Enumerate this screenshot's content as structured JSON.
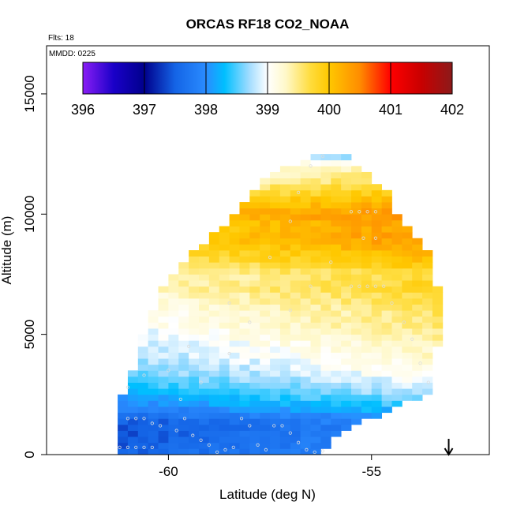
{
  "chart_data": {
    "type": "heatmap",
    "title": "ORCAS RF18 CO2_NOAA",
    "subtitle_flts": "Flts: 18",
    "subtitle_mmdd": "MMDD: 0225",
    "xlabel": "Latitude (deg N)",
    "ylabel": "Altitude (m)",
    "xlim": [
      -63,
      -52.1
    ],
    "ylim": [
      0,
      17000
    ],
    "x_ticks": [
      -60,
      -55
    ],
    "x_tick_labels": [
      "-60",
      "-55"
    ],
    "y_ticks": [
      0,
      5000,
      10000,
      15000
    ],
    "y_tick_labels": [
      "0",
      "5000",
      "10000",
      "15000"
    ],
    "colorbar": {
      "min": 396,
      "max": 402,
      "ticks": [
        396,
        397,
        398,
        399,
        400,
        401,
        402
      ],
      "tick_labels": [
        "396",
        "397",
        "398",
        "399",
        "400",
        "401",
        "402"
      ],
      "stops": [
        {
          "v": 396.0,
          "c": "#8a1ef5"
        },
        {
          "v": 396.5,
          "c": "#1a00c8"
        },
        {
          "v": 397.0,
          "c": "#00008c"
        },
        {
          "v": 397.5,
          "c": "#1464e6"
        },
        {
          "v": 398.0,
          "c": "#2a8cff"
        },
        {
          "v": 398.3,
          "c": "#00bfff"
        },
        {
          "v": 398.7,
          "c": "#a0dcff"
        },
        {
          "v": 399.0,
          "c": "#ffffff"
        },
        {
          "v": 399.3,
          "c": "#fff8c8"
        },
        {
          "v": 399.7,
          "c": "#ffdc3c"
        },
        {
          "v": 400.0,
          "c": "#ffc800"
        },
        {
          "v": 400.5,
          "c": "#ff8c00"
        },
        {
          "v": 401.0,
          "c": "#ff0000"
        },
        {
          "v": 401.5,
          "c": "#c80000"
        },
        {
          "v": 402.0,
          "c": "#8c1a1a"
        }
      ]
    },
    "cell_size": {
      "lat": 0.25,
      "alt": 250
    },
    "envelope": {
      "alt_min": 0,
      "alt_max": 12500,
      "lat_min_points": [
        [
          0,
          -61.25
        ],
        [
          1000,
          -61.25
        ],
        [
          2500,
          -61.0
        ],
        [
          3500,
          -60.75
        ],
        [
          5000,
          -60.5
        ],
        [
          7000,
          -60.0
        ],
        [
          8000,
          -59.5
        ],
        [
          10000,
          -58.25
        ],
        [
          11500,
          -57.5
        ],
        [
          12500,
          -56.25
        ]
      ],
      "lat_max_points": [
        [
          0,
          -56.5
        ],
        [
          1000,
          -55.75
        ],
        [
          2000,
          -54.5
        ],
        [
          2500,
          -53.5
        ],
        [
          4500,
          -53.5
        ],
        [
          5500,
          -53.25
        ],
        [
          7000,
          -53.5
        ],
        [
          8000,
          -53.5
        ],
        [
          9000,
          -54.0
        ],
        [
          10000,
          -54.5
        ],
        [
          11000,
          -54.75
        ],
        [
          12000,
          -55.5
        ],
        [
          12500,
          -55.75
        ]
      ]
    },
    "co2_profile": [
      [
        0,
        397.8
      ],
      [
        1000,
        397.7
      ],
      [
        1500,
        397.8
      ],
      [
        2000,
        398.2
      ],
      [
        2500,
        398.5
      ],
      [
        3000,
        398.7
      ],
      [
        3500,
        398.9
      ],
      [
        4000,
        399.0
      ],
      [
        4500,
        399.1
      ],
      [
        5000,
        399.2
      ],
      [
        5500,
        399.3
      ],
      [
        6000,
        399.35
      ],
      [
        6500,
        399.45
      ],
      [
        7000,
        399.6
      ],
      [
        7500,
        399.5
      ],
      [
        8000,
        399.8
      ],
      [
        8500,
        400.0
      ],
      [
        9000,
        400.2
      ],
      [
        9500,
        400.1
      ],
      [
        10000,
        400.3
      ],
      [
        10500,
        400.0
      ],
      [
        11000,
        399.7
      ],
      [
        11500,
        399.4
      ],
      [
        12000,
        399.2
      ],
      [
        12500,
        398.5
      ]
    ],
    "trend_per_deg": 0.07,
    "flight_track": [
      [
        -61.2,
        300
      ],
      [
        -61.0,
        300
      ],
      [
        -60.8,
        300
      ],
      [
        -60.6,
        300
      ],
      [
        -60.4,
        300
      ],
      [
        -61.0,
        1500
      ],
      [
        -60.8,
        1500
      ],
      [
        -60.6,
        1500
      ],
      [
        -60.4,
        1300
      ],
      [
        -60.2,
        1200
      ],
      [
        -59.8,
        1000
      ],
      [
        -59.6,
        1500
      ],
      [
        -59.4,
        800
      ],
      [
        -59.2,
        600
      ],
      [
        -59.0,
        400
      ],
      [
        -58.8,
        100
      ],
      [
        -58.6,
        200
      ],
      [
        -58.4,
        300
      ],
      [
        -58.2,
        1500
      ],
      [
        -58.0,
        1200
      ],
      [
        -57.8,
        400
      ],
      [
        -57.6,
        200
      ],
      [
        -57.4,
        1200
      ],
      [
        -57.2,
        1200
      ],
      [
        -57.0,
        900
      ],
      [
        -56.8,
        500
      ],
      [
        -56.6,
        200
      ],
      [
        -56.4,
        100
      ],
      [
        -56.2,
        150
      ],
      [
        -61.0,
        2800
      ],
      [
        -60.6,
        3300
      ],
      [
        -60.0,
        3500
      ],
      [
        -59.5,
        4500
      ],
      [
        -58.5,
        6300
      ],
      [
        -57.5,
        8200
      ],
      [
        -57.0,
        9700
      ],
      [
        -56.8,
        10900
      ],
      [
        -56.5,
        12000
      ],
      [
        -56.2,
        12400
      ],
      [
        -55.5,
        10100
      ],
      [
        -55.3,
        10100
      ],
      [
        -55.1,
        10100
      ],
      [
        -54.9,
        10100
      ],
      [
        -55.2,
        9000
      ],
      [
        -54.9,
        9000
      ],
      [
        -55.5,
        7000
      ],
      [
        -55.3,
        7000
      ],
      [
        -55.1,
        7000
      ],
      [
        -54.9,
        7000
      ],
      [
        -54.7,
        7000
      ],
      [
        -54.5,
        6300
      ],
      [
        -54.2,
        5500
      ],
      [
        -54.0,
        4800
      ],
      [
        -53.8,
        3800
      ],
      [
        -53.6,
        3000
      ],
      [
        -56.0,
        8000
      ],
      [
        -56.5,
        7000
      ],
      [
        -57.0,
        6000
      ],
      [
        -58.0,
        5500
      ],
      [
        -58.5,
        4200
      ],
      [
        -59.2,
        3000
      ],
      [
        -59.7,
        2300
      ]
    ],
    "arrow_lat": -53.1,
    "grid": false,
    "legend": "colorbar-top"
  },
  "colors": {
    "track_point": "#dddddd",
    "axis": "#000000",
    "background": "#ffffff"
  }
}
